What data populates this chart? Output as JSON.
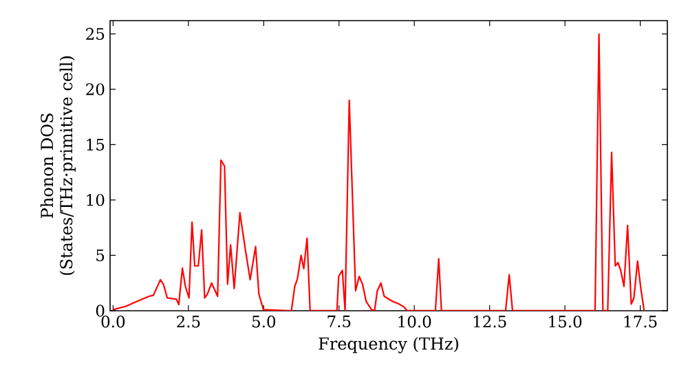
{
  "chart_data": {
    "type": "line",
    "xlabel": "Frequency (THz)",
    "ylabel": "Phonon DOS (States/THz·primitive cell)",
    "xlim": [
      -0.1,
      18.4
    ],
    "ylim": [
      0,
      26.2
    ],
    "xticks": [
      {
        "value": 0,
        "label": "0.0"
      },
      {
        "value": 2.5,
        "label": "2.5"
      },
      {
        "value": 5,
        "label": "5.0"
      },
      {
        "value": 7.5,
        "label": "7.5"
      },
      {
        "value": 10,
        "label": "10.0"
      },
      {
        "value": 12.5,
        "label": "12.5"
      },
      {
        "value": 15,
        "label": "15.0"
      },
      {
        "value": 17.5,
        "label": "17.5"
      }
    ],
    "yticks": [
      0,
      5,
      10,
      15,
      20,
      25
    ],
    "marker": "none",
    "line_style": "solid",
    "series": [
      {
        "color": "#ff0000",
        "x": [
          0,
          0.42,
          0.88,
          1.19,
          1.34,
          1.57,
          1.67,
          1.8,
          2.1,
          2.18,
          2.3,
          2.4,
          2.52,
          2.62,
          2.71,
          2.83,
          2.94,
          3.04,
          3.13,
          3.27,
          3.47,
          3.58,
          3.7,
          3.8,
          3.9,
          4.02,
          4.21,
          4.38,
          4.55,
          4.73,
          4.84,
          4.99,
          5.92,
          6.03,
          6.12,
          6.24,
          6.33,
          6.44,
          6.54,
          7.43,
          7.49,
          7.61,
          7.7,
          7.84,
          8.05,
          8.17,
          8.28,
          8.4,
          8.58,
          8.68,
          8.77,
          8.89,
          9.0,
          9.27,
          9.5,
          9.65,
          9.76,
          10.7,
          10.81,
          10.9,
          13.03,
          13.15,
          13.26,
          16.0,
          16.13,
          16.26,
          16.42,
          16.55,
          16.67,
          16.76,
          16.85,
          16.96,
          17.08,
          17.2,
          17.29,
          17.41,
          17.52,
          17.63
        ],
        "values": [
          0.1,
          0.4,
          0.95,
          1.3,
          1.4,
          2.8,
          2.4,
          1.15,
          1.05,
          0.55,
          3.85,
          2.2,
          1.15,
          8.0,
          4.05,
          4.05,
          7.3,
          1.15,
          1.5,
          2.5,
          1.3,
          13.6,
          13.05,
          2.4,
          5.95,
          2.0,
          8.85,
          5.7,
          2.8,
          5.8,
          1.5,
          0.1,
          0,
          2.2,
          2.9,
          5.0,
          3.8,
          6.55,
          0,
          0,
          3.1,
          3.65,
          0,
          19.0,
          1.8,
          3.1,
          2.4,
          0.85,
          0.1,
          0,
          1.8,
          2.5,
          1.3,
          0.85,
          0.6,
          0.35,
          0,
          0,
          4.7,
          0,
          0,
          3.25,
          0,
          0,
          25.0,
          0,
          0,
          14.3,
          4.05,
          4.35,
          3.65,
          2.2,
          7.7,
          0.6,
          1.15,
          4.5,
          2.0,
          0
        ]
      }
    ]
  }
}
